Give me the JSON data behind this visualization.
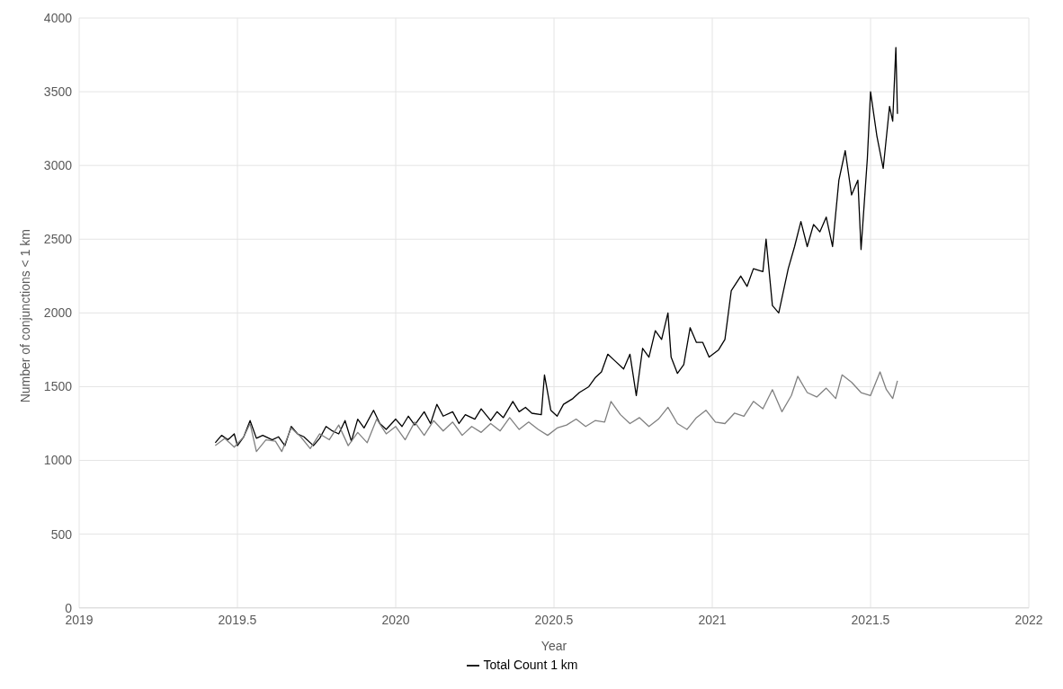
{
  "chart_data": {
    "type": "line",
    "xlabel": "Year",
    "ylabel": "Number of conjunctions < 1 km",
    "xlim": [
      2019,
      2022
    ],
    "xticks": [
      2019,
      2019.5,
      2020,
      2020.5,
      2021,
      2021.5,
      2022
    ],
    "ylim": [
      0,
      4000
    ],
    "yticks": [
      0,
      500,
      1000,
      1500,
      2000,
      2500,
      3000,
      3500,
      4000
    ],
    "grid": true,
    "legend": "bottom",
    "marker": "none",
    "line_style": "solid",
    "series": [
      {
        "name": "Total Count 1 km",
        "color": "#000000",
        "x": [
          2019.43,
          2019.45,
          2019.47,
          2019.49,
          2019.5,
          2019.52,
          2019.54,
          2019.56,
          2019.58,
          2019.61,
          2019.63,
          2019.65,
          2019.67,
          2019.69,
          2019.71,
          2019.74,
          2019.76,
          2019.78,
          2019.8,
          2019.82,
          2019.84,
          2019.86,
          2019.88,
          2019.9,
          2019.93,
          2019.95,
          2019.97,
          2020.0,
          2020.02,
          2020.04,
          2020.06,
          2020.09,
          2020.11,
          2020.13,
          2020.15,
          2020.18,
          2020.2,
          2020.22,
          2020.25,
          2020.27,
          2020.3,
          2020.32,
          2020.34,
          2020.37,
          2020.39,
          2020.41,
          2020.43,
          2020.46,
          2020.47,
          2020.49,
          2020.51,
          2020.53,
          2020.56,
          2020.58,
          2020.61,
          2020.63,
          2020.65,
          2020.67,
          2020.69,
          2020.72,
          2020.74,
          2020.76,
          2020.78,
          2020.8,
          2020.82,
          2020.84,
          2020.86,
          2020.87,
          2020.89,
          2020.91,
          2020.93,
          2020.95,
          2020.97,
          2020.99,
          2021.02,
          2021.04,
          2021.06,
          2021.09,
          2021.11,
          2021.13,
          2021.16,
          2021.17,
          2021.19,
          2021.21,
          2021.24,
          2021.26,
          2021.28,
          2021.3,
          2021.32,
          2021.34,
          2021.36,
          2021.38,
          2021.4,
          2021.42,
          2021.44,
          2021.46,
          2021.47,
          2021.49,
          2021.5,
          2021.52,
          2021.54,
          2021.56,
          2021.57,
          2021.58,
          2021.585
        ],
        "values": [
          1120,
          1170,
          1140,
          1180,
          1100,
          1160,
          1270,
          1150,
          1170,
          1140,
          1160,
          1100,
          1230,
          1180,
          1160,
          1100,
          1150,
          1230,
          1200,
          1180,
          1270,
          1130,
          1280,
          1220,
          1340,
          1250,
          1210,
          1280,
          1230,
          1300,
          1240,
          1330,
          1250,
          1380,
          1300,
          1330,
          1250,
          1310,
          1280,
          1350,
          1270,
          1330,
          1290,
          1400,
          1330,
          1360,
          1320,
          1310,
          1580,
          1340,
          1300,
          1380,
          1420,
          1460,
          1500,
          1560,
          1600,
          1720,
          1680,
          1620,
          1720,
          1440,
          1760,
          1700,
          1880,
          1820,
          2000,
          1700,
          1590,
          1650,
          1900,
          1800,
          1800,
          1700,
          1750,
          1820,
          2150,
          2250,
          2180,
          2300,
          2280,
          2500,
          2050,
          2000,
          2300,
          2450,
          2620,
          2450,
          2600,
          2550,
          2650,
          2450,
          2900,
          3100,
          2800,
          2900,
          2430,
          3050,
          3500,
          3200,
          2980,
          3400,
          3300,
          3800,
          3350
        ]
      },
      {
        "color": "#808080",
        "x": [
          2019.43,
          2019.46,
          2019.49,
          2019.52,
          2019.54,
          2019.56,
          2019.59,
          2019.62,
          2019.64,
          2019.67,
          2019.7,
          2019.73,
          2019.76,
          2019.79,
          2019.82,
          2019.85,
          2019.88,
          2019.91,
          2019.94,
          2019.97,
          2020.0,
          2020.03,
          2020.06,
          2020.09,
          2020.12,
          2020.15,
          2020.18,
          2020.21,
          2020.24,
          2020.27,
          2020.3,
          2020.33,
          2020.36,
          2020.39,
          2020.42,
          2020.45,
          2020.48,
          2020.51,
          2020.54,
          2020.57,
          2020.6,
          2020.63,
          2020.66,
          2020.68,
          2020.71,
          2020.74,
          2020.77,
          2020.8,
          2020.83,
          2020.86,
          2020.89,
          2020.92,
          2020.95,
          2020.98,
          2021.01,
          2021.04,
          2021.07,
          2021.1,
          2021.13,
          2021.16,
          2021.19,
          2021.22,
          2021.25,
          2021.27,
          2021.3,
          2021.33,
          2021.36,
          2021.39,
          2021.41,
          2021.44,
          2021.47,
          2021.5,
          2021.53,
          2021.55,
          2021.57,
          2021.585
        ],
        "values": [
          1100,
          1150,
          1090,
          1160,
          1250,
          1060,
          1140,
          1130,
          1060,
          1220,
          1160,
          1080,
          1180,
          1140,
          1240,
          1100,
          1190,
          1120,
          1280,
          1180,
          1230,
          1140,
          1260,
          1170,
          1270,
          1200,
          1260,
          1170,
          1230,
          1190,
          1250,
          1200,
          1290,
          1210,
          1260,
          1210,
          1170,
          1220,
          1240,
          1280,
          1230,
          1270,
          1260,
          1400,
          1310,
          1250,
          1290,
          1230,
          1280,
          1360,
          1250,
          1210,
          1290,
          1340,
          1260,
          1250,
          1320,
          1300,
          1400,
          1350,
          1480,
          1330,
          1440,
          1570,
          1460,
          1430,
          1490,
          1420,
          1580,
          1530,
          1460,
          1440,
          1600,
          1480,
          1420,
          1540
        ]
      }
    ]
  }
}
